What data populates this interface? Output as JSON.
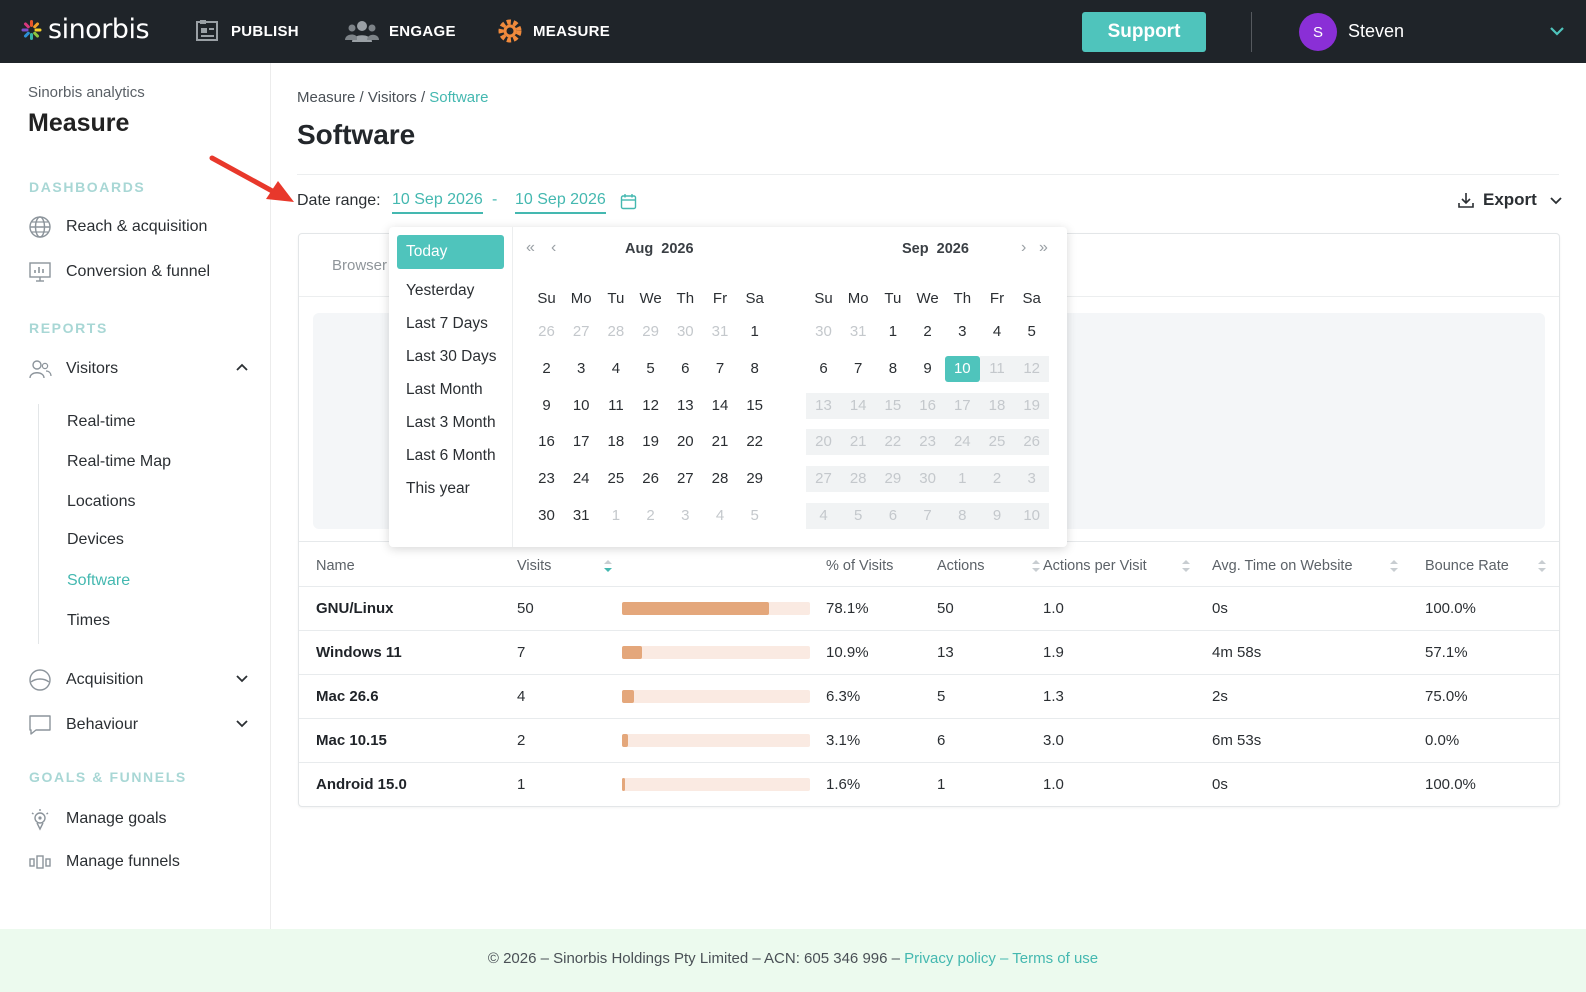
{
  "topbar": {
    "logo_text": "sinorbis",
    "nav": [
      {
        "label": "PUBLISH",
        "icon": "publish-icon"
      },
      {
        "label": "ENGAGE",
        "icon": "engage-icon"
      },
      {
        "label": "MEASURE",
        "icon": "measure-icon"
      }
    ],
    "support_label": "Support",
    "user": {
      "initial": "S",
      "name": "Steven"
    },
    "colors": {
      "bg": "#1f2429",
      "accent": "#4fc4bc",
      "avatar": "#8a2fd6"
    }
  },
  "sidebar": {
    "subtitle": "Sinorbis analytics",
    "title": "Measure",
    "sections": {
      "dashboards": "DASHBOARDS",
      "reports": "REPORTS",
      "goals": "GOALS & FUNNELS"
    },
    "dashboards": [
      {
        "label": "Reach & acquisition",
        "icon": "globe-icon"
      },
      {
        "label": "Conversion & funnel",
        "icon": "monitor-chart-icon"
      }
    ],
    "visitors": {
      "label": "Visitors",
      "icon": "users-icon"
    },
    "visitors_sub": [
      "Real-time",
      "Real-time Map",
      "Locations",
      "Devices",
      "Software",
      "Times"
    ],
    "active_sub": "Software",
    "acquisition": {
      "label": "Acquisition",
      "icon": "acquisition-icon"
    },
    "behaviour": {
      "label": "Behaviour",
      "icon": "chat-bubble-icon"
    },
    "goals": [
      {
        "label": "Manage goals",
        "icon": "goal-icon"
      },
      {
        "label": "Manage funnels",
        "icon": "funnel-icon"
      }
    ]
  },
  "main": {
    "breadcrumb": {
      "a": "Measure",
      "sep1": " / ",
      "b": "Visitors",
      "sep2": " / ",
      "current": "Software"
    },
    "title": "Software",
    "date_range_label": "Date range:",
    "date_from": "10 Sep 2026",
    "date_sep": "-",
    "date_to": "10 Sep 2026",
    "export_label": "Export",
    "tab_label": "Browser"
  },
  "table": {
    "headers": {
      "name": "Name",
      "visits": "Visits",
      "pct": "% of Visits",
      "actions": "Actions",
      "apv": "Actions per Visit",
      "avg_time": "Avg. Time on Website",
      "bounce": "Bounce Rate"
    },
    "rows": [
      {
        "name": "GNU/Linux",
        "visits": "50",
        "share": 0.781,
        "pct": "78.1%",
        "actions": "50",
        "apv": "1.0",
        "avg_time": "0s",
        "bounce": "100.0%"
      },
      {
        "name": "Windows 11",
        "visits": "7",
        "share": 0.109,
        "pct": "10.9%",
        "actions": "13",
        "apv": "1.9",
        "avg_time": "4m 58s",
        "bounce": "57.1%"
      },
      {
        "name": "Mac 26.6",
        "visits": "4",
        "share": 0.063,
        "pct": "6.3%",
        "actions": "5",
        "apv": "1.3",
        "avg_time": "2s",
        "bounce": "75.0%"
      },
      {
        "name": "Mac 10.15",
        "visits": "2",
        "share": 0.031,
        "pct": "3.1%",
        "actions": "6",
        "apv": "3.0",
        "avg_time": "6m 53s",
        "bounce": "0.0%"
      },
      {
        "name": "Android 15.0",
        "visits": "1",
        "share": 0.016,
        "pct": "1.6%",
        "actions": "1",
        "apv": "1.0",
        "avg_time": "0s",
        "bounce": "100.0%"
      }
    ]
  },
  "datepicker": {
    "presets": [
      "Today",
      "Yesterday",
      "Last 7 Days",
      "Last 30 Days",
      "Last Month",
      "Last 3 Month",
      "Last 6 Month",
      "This year"
    ],
    "active_preset": "Today",
    "nav": {
      "prev_year": "«",
      "prev_month": "‹",
      "next_month": "›",
      "next_year": "»"
    },
    "dow": [
      "Su",
      "Mo",
      "Tu",
      "We",
      "Th",
      "Fr",
      "Sa"
    ],
    "left": {
      "month": "Aug",
      "year": "2026",
      "weeks": [
        [
          "26",
          "27",
          "28",
          "29",
          "30",
          "31",
          "1"
        ],
        [
          "2",
          "3",
          "4",
          "5",
          "6",
          "7",
          "8"
        ],
        [
          "9",
          "10",
          "11",
          "12",
          "13",
          "14",
          "15"
        ],
        [
          "16",
          "17",
          "18",
          "19",
          "20",
          "21",
          "22"
        ],
        [
          "23",
          "24",
          "25",
          "26",
          "27",
          "28",
          "29"
        ],
        [
          "30",
          "31",
          "1",
          "2",
          "3",
          "4",
          "5"
        ]
      ]
    },
    "right": {
      "month": "Sep",
      "year": "2026",
      "weeks": [
        [
          "30",
          "31",
          "1",
          "2",
          "3",
          "4",
          "5"
        ],
        [
          "6",
          "7",
          "8",
          "9",
          "10",
          "11",
          "12"
        ],
        [
          "13",
          "14",
          "15",
          "16",
          "17",
          "18",
          "19"
        ],
        [
          "20",
          "21",
          "22",
          "23",
          "24",
          "25",
          "26"
        ],
        [
          "27",
          "28",
          "29",
          "30",
          "1",
          "2",
          "3"
        ],
        [
          "4",
          "5",
          "6",
          "7",
          "8",
          "9",
          "10"
        ]
      ]
    },
    "selected_day": "10"
  },
  "footer": {
    "text": "© 2026 – Sinorbis Holdings Pty Limited – ACN: 605 346 996 – ",
    "privacy": "Privacy policy",
    "sep": " – ",
    "terms": "Terms of use"
  }
}
